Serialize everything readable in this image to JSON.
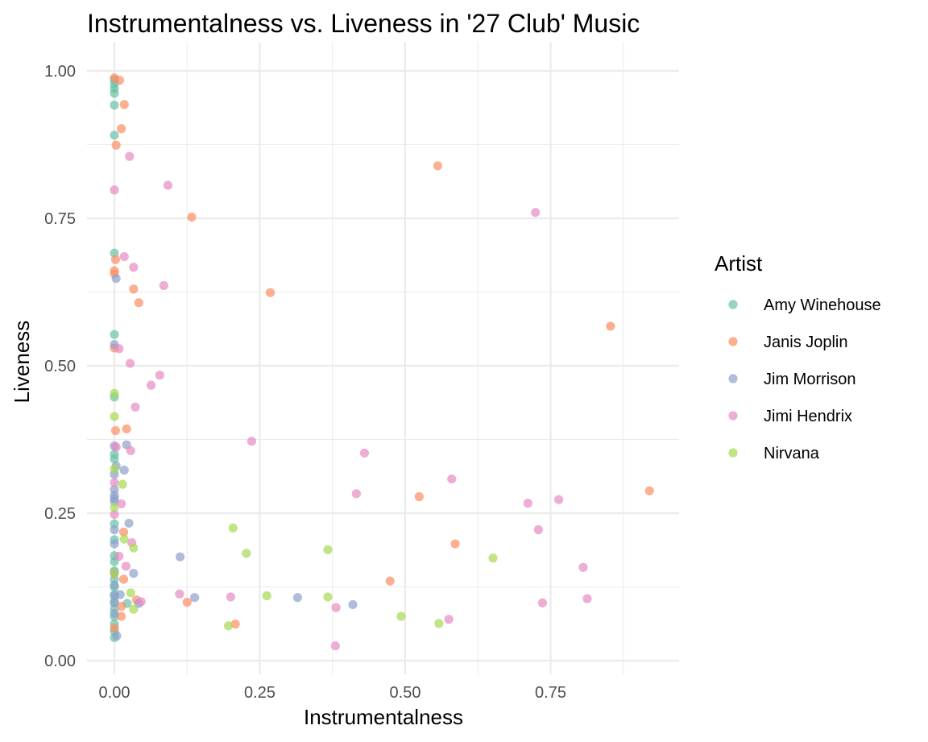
{
  "chart_data": {
    "type": "scatter",
    "title": "Instrumentalness vs. Liveness in '27 Club' Music",
    "xlabel": "Instrumentalness",
    "ylabel": "Liveness",
    "xlim": [
      -0.05,
      0.97
    ],
    "ylim": [
      -0.01,
      1.04
    ],
    "x_ticks": [
      0.0,
      0.25,
      0.5,
      0.75
    ],
    "x_tick_labels": [
      "0.00",
      "0.25",
      "0.50",
      "0.75"
    ],
    "y_ticks": [
      0.0,
      0.25,
      0.5,
      0.75,
      1.0
    ],
    "y_tick_labels": [
      "0.00",
      "0.25",
      "0.50",
      "0.75",
      "1.00"
    ],
    "grid": true,
    "legend": {
      "title": "Artist",
      "position": "right"
    },
    "series": [
      {
        "name": "Amy Winehouse",
        "color": "#66c2a5",
        "points": [
          [
            0,
            0.985
          ],
          [
            0,
            0.978
          ],
          [
            0,
            0.97
          ],
          [
            0,
            0.962
          ],
          [
            0,
            0.942
          ],
          [
            0,
            0.891
          ],
          [
            0,
            0.691
          ],
          [
            0,
            0.553
          ],
          [
            0,
            0.447
          ],
          [
            0,
            0.35
          ],
          [
            0,
            0.342
          ],
          [
            0,
            0.232
          ],
          [
            0,
            0.205
          ],
          [
            0,
            0.178
          ],
          [
            0,
            0.168
          ],
          [
            0,
            0.152
          ],
          [
            0,
            0.138
          ],
          [
            0,
            0.125
          ],
          [
            0,
            0.112
          ],
          [
            0,
            0.1
          ],
          [
            0,
            0.088
          ],
          [
            0,
            0.075
          ],
          [
            0,
            0.062
          ],
          [
            0,
            0.05
          ],
          [
            0,
            0.039
          ],
          [
            0.022,
            0.097
          ]
        ]
      },
      {
        "name": "Janis Joplin",
        "color": "#fc8d62",
        "points": [
          [
            0,
            0.988
          ],
          [
            0.009,
            0.984
          ],
          [
            0.017,
            0.943
          ],
          [
            0.012,
            0.902
          ],
          [
            0.003,
            0.874
          ],
          [
            0.133,
            0.752
          ],
          [
            0.556,
            0.839
          ],
          [
            0.002,
            0.68
          ],
          [
            0,
            0.661
          ],
          [
            0,
            0.656
          ],
          [
            0.033,
            0.63
          ],
          [
            0.042,
            0.607
          ],
          [
            0.268,
            0.624
          ],
          [
            0.853,
            0.567
          ],
          [
            0,
            0.53
          ],
          [
            0.021,
            0.393
          ],
          [
            0.002,
            0.39
          ],
          [
            0.92,
            0.288
          ],
          [
            0.524,
            0.278
          ],
          [
            0.016,
            0.218
          ],
          [
            0.586,
            0.198
          ],
          [
            0.474,
            0.135
          ],
          [
            0.016,
            0.138
          ],
          [
            0.038,
            0.103
          ],
          [
            0.125,
            0.099
          ],
          [
            0.012,
            0.092
          ],
          [
            0.208,
            0.062
          ],
          [
            0.012,
            0.075
          ],
          [
            0,
            0.055
          ],
          [
            0,
            0.148
          ]
        ]
      },
      {
        "name": "Jim Morrison",
        "color": "#8da0cb",
        "points": [
          [
            0.003,
            0.648
          ],
          [
            0,
            0.536
          ],
          [
            0,
            0.364
          ],
          [
            0.021,
            0.366
          ],
          [
            0.003,
            0.33
          ],
          [
            0.017,
            0.323
          ],
          [
            0,
            0.316
          ],
          [
            0,
            0.29
          ],
          [
            0,
            0.28
          ],
          [
            0,
            0.275
          ],
          [
            0,
            0.27
          ],
          [
            0.025,
            0.233
          ],
          [
            0,
            0.222
          ],
          [
            0,
            0.198
          ],
          [
            0.113,
            0.176
          ],
          [
            0.033,
            0.148
          ],
          [
            0.138,
            0.107
          ],
          [
            0.315,
            0.107
          ],
          [
            0.41,
            0.095
          ],
          [
            0.042,
            0.097
          ],
          [
            0,
            0.15
          ],
          [
            0,
            0.128
          ],
          [
            0,
            0.11
          ],
          [
            0.01,
            0.112
          ],
          [
            0,
            0.098
          ],
          [
            0,
            0.08
          ],
          [
            0.004,
            0.042
          ]
        ]
      },
      {
        "name": "Jimi Hendrix",
        "color": "#e78ac3",
        "points": [
          [
            0.026,
            0.855
          ],
          [
            0.092,
            0.806
          ],
          [
            0,
            0.798
          ],
          [
            0.724,
            0.76
          ],
          [
            0.017,
            0.685
          ],
          [
            0.033,
            0.667
          ],
          [
            0.085,
            0.636
          ],
          [
            0.008,
            0.529
          ],
          [
            0.027,
            0.504
          ],
          [
            0.078,
            0.484
          ],
          [
            0.063,
            0.467
          ],
          [
            0.036,
            0.43
          ],
          [
            0.236,
            0.372
          ],
          [
            0.43,
            0.352
          ],
          [
            0.003,
            0.362
          ],
          [
            0.028,
            0.356
          ],
          [
            0.58,
            0.308
          ],
          [
            0,
            0.302
          ],
          [
            0.416,
            0.283
          ],
          [
            0.711,
            0.267
          ],
          [
            0.764,
            0.273
          ],
          [
            0.012,
            0.266
          ],
          [
            0,
            0.248
          ],
          [
            0.729,
            0.222
          ],
          [
            0.03,
            0.2
          ],
          [
            0.008,
            0.177
          ],
          [
            0.02,
            0.16
          ],
          [
            0.806,
            0.158
          ],
          [
            0.112,
            0.113
          ],
          [
            0.2,
            0.108
          ],
          [
            0.813,
            0.105
          ],
          [
            0.736,
            0.098
          ],
          [
            0.046,
            0.1
          ],
          [
            0.381,
            0.09
          ],
          [
            0.575,
            0.07
          ],
          [
            0.38,
            0.025
          ]
        ]
      },
      {
        "name": "Nirvana",
        "color": "#a6d854",
        "points": [
          [
            0,
            0.453
          ],
          [
            0,
            0.414
          ],
          [
            0.014,
            0.299
          ],
          [
            0,
            0.325
          ],
          [
            0,
            0.26
          ],
          [
            0.204,
            0.225
          ],
          [
            0.017,
            0.206
          ],
          [
            0.033,
            0.191
          ],
          [
            0.227,
            0.182
          ],
          [
            0.367,
            0.188
          ],
          [
            0.651,
            0.174
          ],
          [
            0.028,
            0.115
          ],
          [
            0.262,
            0.11
          ],
          [
            0.367,
            0.108
          ],
          [
            0.033,
            0.087
          ],
          [
            0.493,
            0.075
          ],
          [
            0.196,
            0.059
          ],
          [
            0.558,
            0.063
          ],
          [
            0,
            0.149
          ]
        ]
      }
    ]
  }
}
